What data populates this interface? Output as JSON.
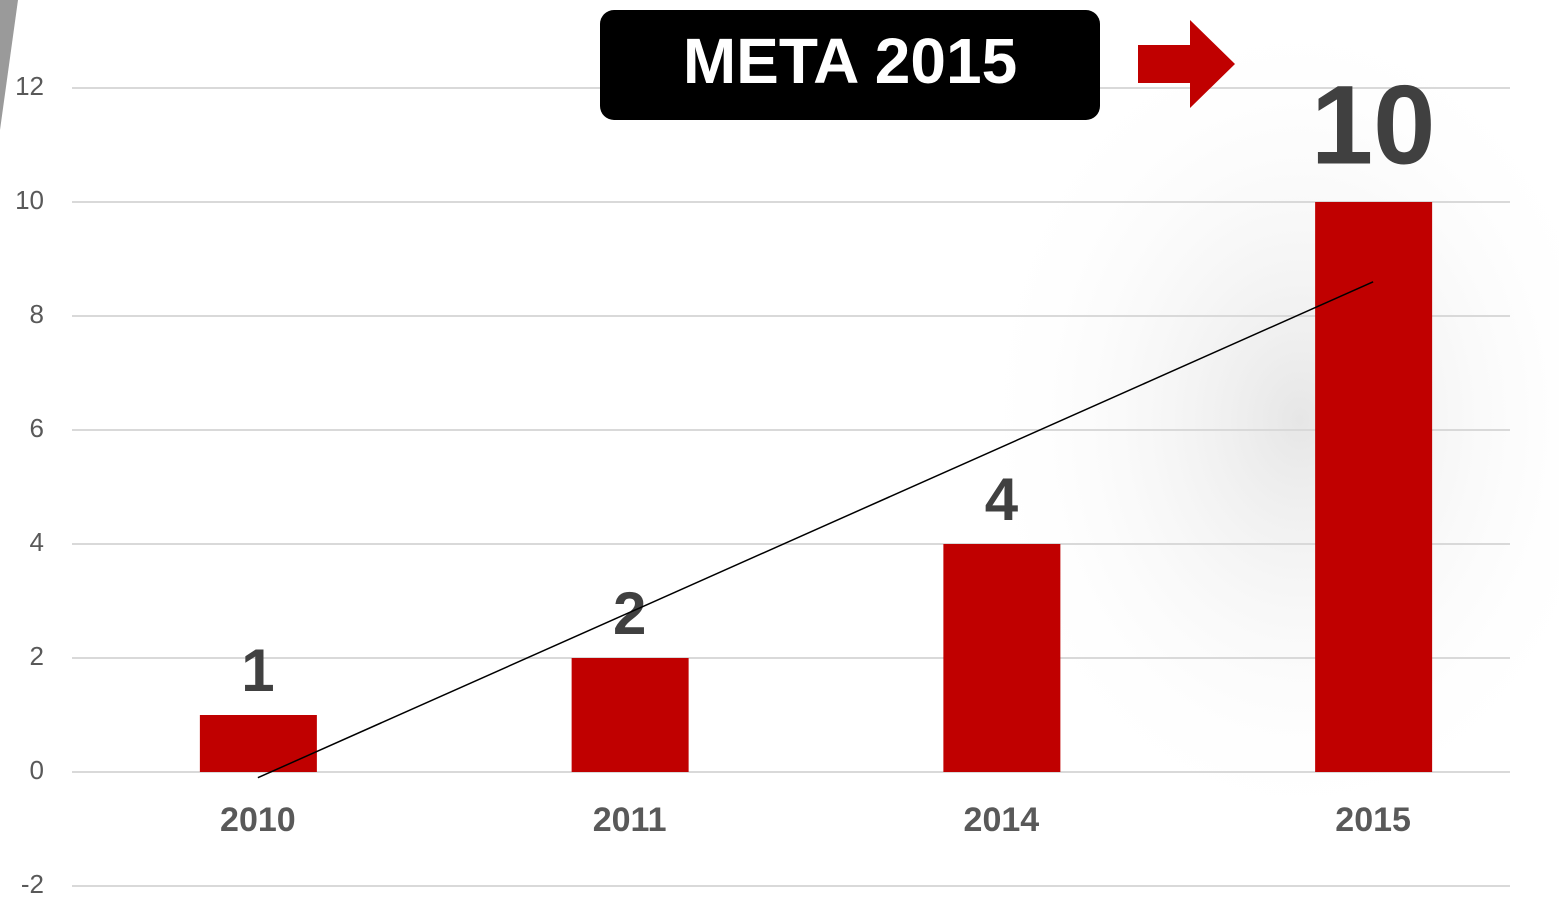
{
  "chart_data": {
    "type": "bar",
    "annotation": "META 2015",
    "categories": [
      "2010",
      "2011",
      "2014",
      "2015"
    ],
    "values": [
      1,
      2,
      4,
      10
    ],
    "color": "#c00000",
    "ylim": [
      -2,
      12
    ],
    "yticks": [
      -2,
      0,
      2,
      4,
      6,
      8,
      10,
      12
    ],
    "grid": true,
    "trendline": true
  }
}
